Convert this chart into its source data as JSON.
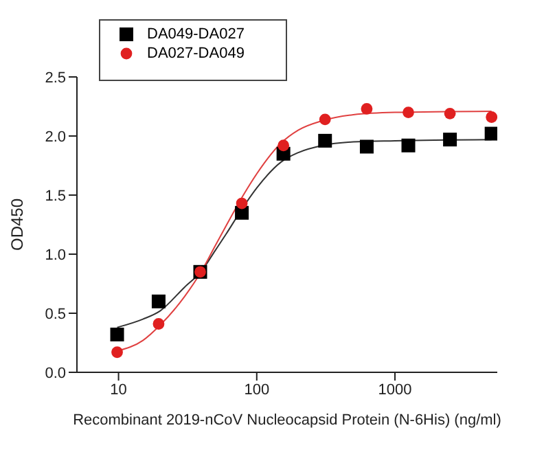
{
  "chart_data": {
    "type": "scatter",
    "xlabel": "Recombinant 2019-nCoV Nucleocapsid Protein (N-6His) (ng/ml)",
    "ylabel": "OD450",
    "log": "x",
    "xlim": [
      5,
      5500
    ],
    "xticks": [
      10,
      100,
      1000
    ],
    "ylim": [
      0,
      2.5
    ],
    "yticks": [
      {
        "value": 0,
        "label": "0.0"
      },
      0.5,
      {
        "value": 1,
        "label": "1.0"
      },
      1.5,
      {
        "value": 2,
        "label": "2.0"
      },
      2.5
    ],
    "grid": false,
    "legend": "top left",
    "series": [
      {
        "name": "DA049-DA027",
        "marker": "square",
        "color": "#000000",
        "x": [
          9.77,
          19.5,
          39,
          78,
          156,
          312,
          625,
          1250,
          2500,
          5000
        ],
        "values": [
          0.32,
          0.6,
          0.85,
          1.35,
          1.85,
          1.96,
          1.91,
          1.92,
          1.97,
          2.02
        ]
      },
      {
        "name": "DA027-DA049",
        "marker": "circle",
        "color": "#e02020",
        "x": [
          9.77,
          19.5,
          39,
          78,
          156,
          312,
          625,
          1250,
          2500,
          5000
        ],
        "values": [
          0.17,
          0.41,
          0.85,
          1.43,
          1.92,
          2.14,
          2.23,
          2.2,
          2.19,
          2.16
        ]
      },
      {
        "type": "line",
        "color": "#333333",
        "line_style": "solid",
        "x": [
          9.77,
          15,
          20,
          30,
          40,
          50,
          60,
          80,
          100,
          150,
          200,
          300,
          500,
          1000,
          5000
        ],
        "values": [
          0.38,
          0.45,
          0.52,
          0.72,
          0.86,
          1.03,
          1.17,
          1.4,
          1.56,
          1.78,
          1.86,
          1.92,
          1.95,
          1.96,
          1.97
        ]
      },
      {
        "type": "line",
        "color": "#e04040",
        "line_style": "solid",
        "x": [
          9.77,
          15,
          20,
          30,
          40,
          50,
          60,
          80,
          100,
          150,
          200,
          300,
          500,
          1000,
          5000
        ],
        "values": [
          0.18,
          0.27,
          0.4,
          0.64,
          0.86,
          1.07,
          1.24,
          1.5,
          1.68,
          1.94,
          2.05,
          2.13,
          2.18,
          2.2,
          2.21
        ]
      }
    ]
  }
}
